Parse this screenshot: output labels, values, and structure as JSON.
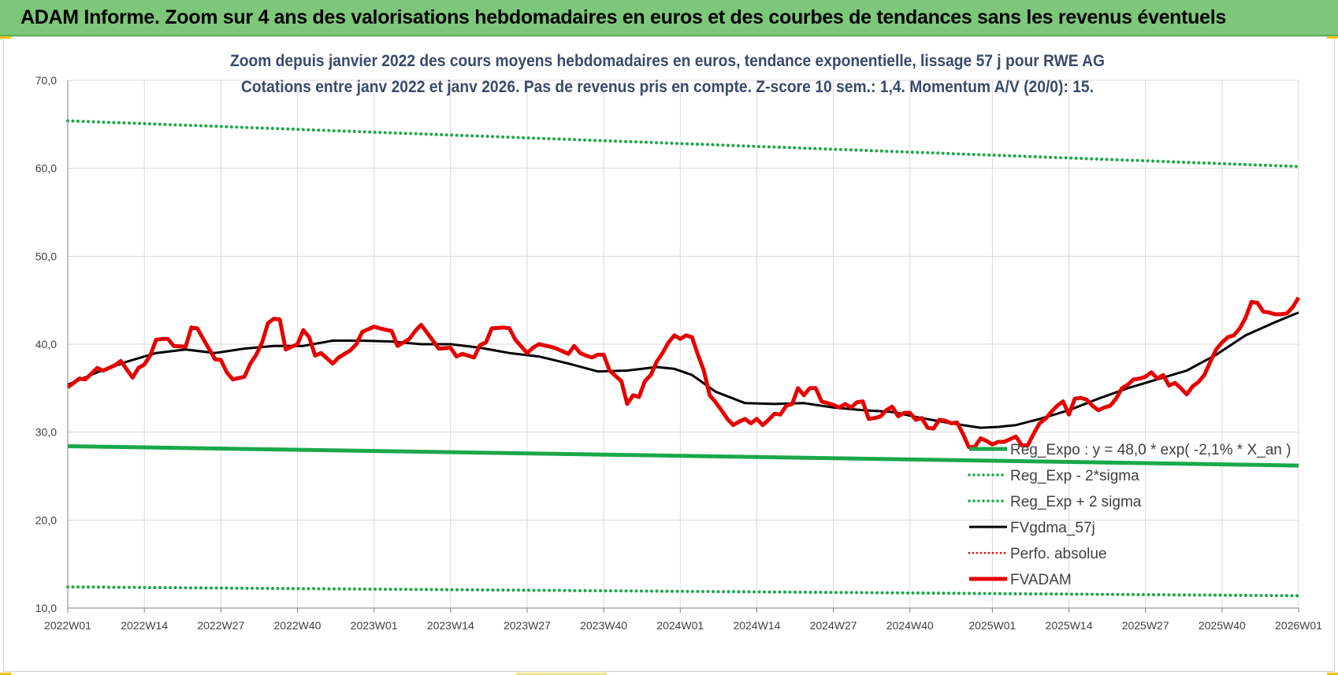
{
  "banner": {
    "title": "ADAM Informe. Zoom sur 4 ans des valorisations hebdomadaires en euros et des courbes de tendances sans les revenus éventuels"
  },
  "colors": {
    "banner_bg": "#7dc77a",
    "reg_expo": "#1aa84a",
    "fvgdma": "#000000",
    "fvadam": "#e60000",
    "perfo": "#e60000",
    "grid": "#d9d9d9",
    "title_text": "#3a4a6b"
  },
  "chart_data": {
    "type": "line",
    "title": "Zoom depuis janvier 2022 des cours moyens hebdomadaires en euros, tendance exponentielle, lissage 57 j pour RWE AG",
    "subtitle": "Cotations entre janv 2022 et janv 2026. Pas de revenus pris en compte. Z-score 10 sem.: 1,4. Momentum A/V (20/0):  15.",
    "xlabel": "",
    "ylabel": "",
    "ylim": [
      10,
      70
    ],
    "yticks": [
      "10,0",
      "20,0",
      "30,0",
      "40,0",
      "50,0",
      "60,0",
      "70,0"
    ],
    "ytick_values": [
      10,
      20,
      30,
      40,
      50,
      60,
      70
    ],
    "xlim": [
      0,
      209
    ],
    "xticks": [
      "2022W01",
      "2022W14",
      "2022W27",
      "2022W40",
      "2023W01",
      "2023W14",
      "2023W27",
      "2023W40",
      "2024W01",
      "2024W14",
      "2024W27",
      "2024W40",
      "2025W01",
      "2025W14",
      "2025W27",
      "2025W40",
      "2026W01"
    ],
    "xtick_values": [
      0,
      13,
      26,
      39,
      52,
      65,
      78,
      91,
      104,
      117,
      130,
      143,
      157,
      170,
      183,
      196,
      209
    ],
    "grid": true,
    "legend_position": "bottom-right",
    "series": [
      {
        "name": "Reg_Expo : y = 48,0 * exp( -2,1% *  X_an )",
        "style": "solid-thick",
        "x": [
          0,
          209
        ],
        "y": [
          28.4,
          26.2
        ]
      },
      {
        "name": "Reg_Exp - 2*sigma",
        "style": "dotted",
        "x": [
          0,
          209
        ],
        "y": [
          12.4,
          11.4
        ]
      },
      {
        "name": "Reg_Exp + 2 sigma",
        "style": "dotted",
        "x": [
          0,
          209
        ],
        "y": [
          65.4,
          60.2
        ]
      },
      {
        "name": "FVgdma_57j",
        "style": "solid",
        "x": [
          0,
          5,
          10,
          15,
          20,
          25,
          30,
          35,
          40,
          45,
          50,
          55,
          60,
          65,
          70,
          75,
          80,
          85,
          90,
          95,
          100,
          103,
          106,
          110,
          115,
          120,
          125,
          130,
          135,
          140,
          145,
          150,
          155,
          158,
          161,
          165,
          170,
          175,
          180,
          185,
          190,
          195,
          200,
          205,
          209
        ],
        "y": [
          35.4,
          36.8,
          38.0,
          39.0,
          39.4,
          39.0,
          39.5,
          39.8,
          39.8,
          40.4,
          40.4,
          40.3,
          40.0,
          40.0,
          39.6,
          39.0,
          38.6,
          37.8,
          36.9,
          37.0,
          37.4,
          37.2,
          36.5,
          34.6,
          33.3,
          33.2,
          33.3,
          32.8,
          32.5,
          32.3,
          31.6,
          31.0,
          30.5,
          30.6,
          30.8,
          31.5,
          32.5,
          33.8,
          35.0,
          36.0,
          37.0,
          38.8,
          41.0,
          42.5,
          43.6
        ]
      },
      {
        "name": "Perfo. absolue",
        "style": "dotted",
        "x": [],
        "y": []
      },
      {
        "name": "FVADAM",
        "style": "solid-thick",
        "x": [
          0,
          2,
          3,
          5,
          6,
          8,
          9,
          11,
          12,
          13,
          14,
          15,
          16,
          17,
          18,
          20,
          21,
          22,
          23,
          25,
          26,
          27,
          28,
          30,
          31,
          32,
          33,
          34,
          35,
          36,
          37,
          39,
          40,
          41,
          42,
          43,
          45,
          46,
          48,
          49,
          50,
          52,
          53,
          55,
          56,
          58,
          59,
          60,
          62,
          63,
          65,
          66,
          67,
          69,
          70,
          71,
          72,
          74,
          75,
          76,
          78,
          79,
          80,
          82,
          83,
          85,
          86,
          87,
          88,
          89,
          90,
          91,
          92,
          93,
          94,
          95,
          96,
          97,
          98,
          99,
          100,
          101,
          102,
          103,
          104,
          105,
          106,
          107,
          108,
          109,
          110,
          111,
          112,
          113,
          114,
          115,
          116,
          117,
          118,
          119,
          120,
          121,
          122,
          123,
          124,
          125,
          126,
          127,
          128,
          129,
          130,
          131,
          132,
          133,
          134,
          135,
          136,
          137,
          138,
          139,
          140,
          141,
          142,
          143,
          144,
          145,
          146,
          147,
          148,
          149,
          150,
          151,
          152,
          153,
          154,
          155,
          156,
          157,
          158,
          159,
          160,
          161,
          162,
          163,
          164,
          165,
          166,
          167,
          168,
          169,
          170,
          171,
          172,
          173,
          174,
          175,
          176,
          177,
          178,
          179,
          180,
          181,
          182,
          183,
          184,
          185,
          186,
          187,
          188,
          189,
          190,
          191,
          192,
          193,
          194,
          195,
          196,
          197,
          198,
          199,
          200,
          201,
          202,
          203,
          204,
          205,
          206,
          207,
          208,
          209
        ],
        "y": [
          35.1,
          36.1,
          36.0,
          37.3,
          37.0,
          37.6,
          38.1,
          36.2,
          37.3,
          37.7,
          38.7,
          40.5,
          40.6,
          40.6,
          39.8,
          39.7,
          41.9,
          41.8,
          40.6,
          38.3,
          38.2,
          36.8,
          36.0,
          36.3,
          37.8,
          38.8,
          40.2,
          42.4,
          42.9,
          42.8,
          39.4,
          40.0,
          41.6,
          40.8,
          38.7,
          39.0,
          37.8,
          38.5,
          39.3,
          40.0,
          41.4,
          42.0,
          41.8,
          41.5,
          39.8,
          40.6,
          41.5,
          42.2,
          40.4,
          39.5,
          39.6,
          38.6,
          38.9,
          38.5,
          39.9,
          40.2,
          41.8,
          41.9,
          41.8,
          40.5,
          39.0,
          39.6,
          40.0,
          39.7,
          39.5,
          38.9,
          39.8,
          39.0,
          38.7,
          38.5,
          38.8,
          38.8,
          37.0,
          36.4,
          35.8,
          33.2,
          34.2,
          34.0,
          35.8,
          36.5,
          38.0,
          39.0,
          40.2,
          41.0,
          40.6,
          41.0,
          40.8,
          38.8,
          37.0,
          34.2,
          33.4,
          32.5,
          31.5,
          30.8,
          31.2,
          31.5,
          31.0,
          31.5,
          30.8,
          31.4,
          32.1,
          32.0,
          33.0,
          33.2,
          35.0,
          34.2,
          35.0,
          35.0,
          33.5,
          33.3,
          33.1,
          32.8,
          33.2,
          32.8,
          33.4,
          33.5,
          31.5,
          31.6,
          31.8,
          32.5,
          32.9,
          31.8,
          32.2,
          32.2,
          31.4,
          31.6,
          30.5,
          30.4,
          31.4,
          31.3,
          31.0,
          31.1,
          29.8,
          28.3,
          28.3,
          29.3,
          29.0,
          28.6,
          28.9,
          28.9,
          29.2,
          29.5,
          28.5,
          28.5,
          29.8,
          31.0,
          31.5,
          32.3,
          33.0,
          33.5,
          32.0,
          33.8,
          33.9,
          33.7,
          33.0,
          32.5,
          32.8,
          33.0,
          33.8,
          35.0,
          35.4,
          36.0,
          36.1,
          36.3,
          36.8,
          36.1,
          36.5,
          35.3,
          35.6,
          35.0,
          34.3,
          35.2,
          35.7,
          36.5,
          38.0,
          39.4,
          40.2,
          40.8,
          41.0,
          41.8,
          43.0,
          44.8,
          44.7,
          43.7,
          43.6,
          43.4,
          43.4,
          43.5,
          44.2,
          45.3
        ]
      }
    ]
  }
}
